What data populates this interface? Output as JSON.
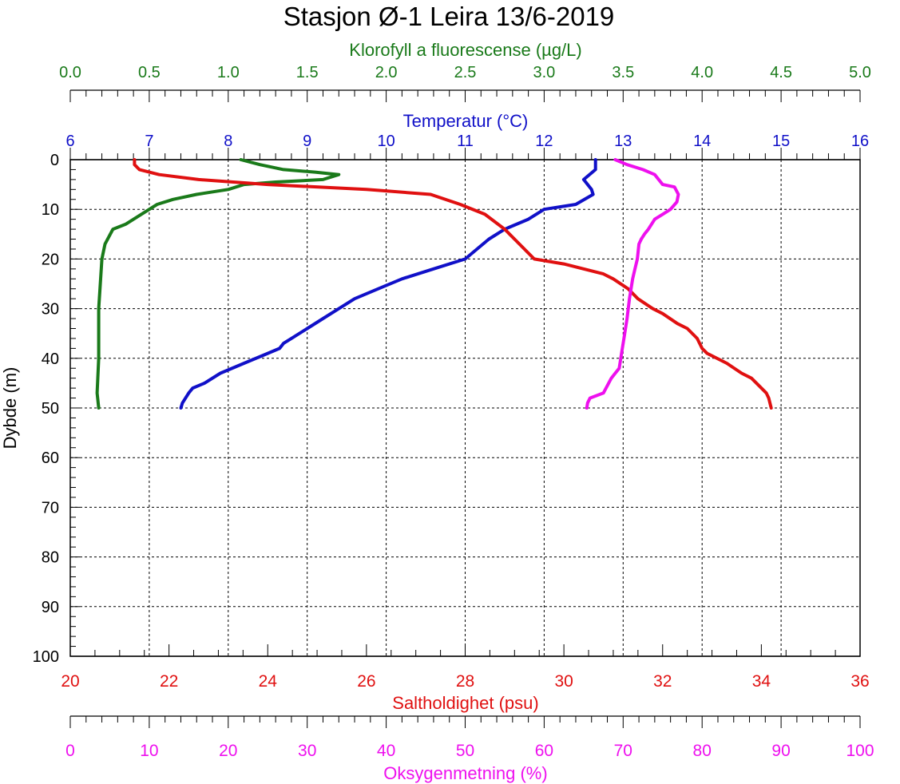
{
  "chart_data": {
    "type": "line",
    "title": "Stasjon Ø-1 Leira 13/6-2019",
    "ylabel": "Dybde (m)",
    "ylim": [
      0,
      100
    ],
    "y_ticks": [
      0,
      10,
      20,
      30,
      40,
      50,
      60,
      70,
      80,
      90,
      100
    ],
    "y_inverted": true,
    "grid": true,
    "axes": {
      "chlorophyll": {
        "label": "Klorofyll a fluorescense (µg/L)",
        "position": "top",
        "range": [
          0,
          5
        ],
        "ticks": [
          "0.0",
          "0.5",
          "1.0",
          "1.5",
          "2.0",
          "2.5",
          "3.0",
          "3.5",
          "4.0",
          "4.5",
          "5.0"
        ],
        "color": "#1a7a1a"
      },
      "temperature": {
        "label": "Temperatur (°C)",
        "position": "top",
        "range": [
          6,
          16
        ],
        "ticks": [
          "6",
          "7",
          "8",
          "9",
          "10",
          "11",
          "12",
          "13",
          "14",
          "15",
          "16"
        ],
        "color": "#1010c8"
      },
      "salinity": {
        "label": "Saltholdighet (psu)",
        "position": "bottom",
        "range": [
          20,
          36
        ],
        "ticks": [
          "20",
          "22",
          "24",
          "26",
          "28",
          "30",
          "32",
          "34",
          "36"
        ],
        "color": "#e01010"
      },
      "oxygen": {
        "label": "Oksygenmetning (%)",
        "position": "bottom",
        "range": [
          0,
          100
        ],
        "ticks": [
          "0",
          "10",
          "20",
          "30",
          "40",
          "50",
          "60",
          "70",
          "80",
          "90",
          "100"
        ],
        "color": "#ee10ee"
      }
    },
    "series": [
      {
        "axis": "chlorophyll",
        "color": "#1a7a1a",
        "points": [
          [
            1.08,
            0
          ],
          [
            1.2,
            1
          ],
          [
            1.35,
            2
          ],
          [
            1.55,
            2.5
          ],
          [
            1.7,
            3
          ],
          [
            1.6,
            4
          ],
          [
            1.3,
            4.5
          ],
          [
            1.1,
            5
          ],
          [
            1.0,
            6
          ],
          [
            0.8,
            7
          ],
          [
            0.65,
            8
          ],
          [
            0.55,
            9
          ],
          [
            0.45,
            11
          ],
          [
            0.35,
            13
          ],
          [
            0.27,
            14
          ],
          [
            0.22,
            17
          ],
          [
            0.2,
            20
          ],
          [
            0.19,
            25
          ],
          [
            0.18,
            30
          ],
          [
            0.18,
            40
          ],
          [
            0.17,
            47
          ],
          [
            0.18,
            50
          ]
        ]
      },
      {
        "axis": "temperature",
        "color": "#1010c8",
        "points": [
          [
            12.65,
            0
          ],
          [
            12.65,
            2
          ],
          [
            12.5,
            4
          ],
          [
            12.6,
            6
          ],
          [
            12.62,
            7
          ],
          [
            12.4,
            9
          ],
          [
            12.0,
            10
          ],
          [
            11.8,
            12
          ],
          [
            11.5,
            14
          ],
          [
            11.3,
            16
          ],
          [
            11.0,
            20
          ],
          [
            10.6,
            22
          ],
          [
            10.2,
            24
          ],
          [
            9.9,
            26
          ],
          [
            9.6,
            28
          ],
          [
            9.4,
            30
          ],
          [
            9.2,
            32
          ],
          [
            9.0,
            34
          ],
          [
            8.8,
            36
          ],
          [
            8.7,
            37
          ],
          [
            8.65,
            38
          ],
          [
            8.5,
            39
          ],
          [
            8.2,
            41
          ],
          [
            7.9,
            43
          ],
          [
            7.7,
            45
          ],
          [
            7.55,
            46
          ],
          [
            7.5,
            47
          ],
          [
            7.42,
            49
          ],
          [
            7.4,
            50
          ]
        ]
      },
      {
        "axis": "salinity",
        "color": "#e01010",
        "points": [
          [
            21.3,
            0
          ],
          [
            21.3,
            1
          ],
          [
            21.4,
            2
          ],
          [
            21.8,
            3
          ],
          [
            22.6,
            4
          ],
          [
            24.0,
            5
          ],
          [
            26.0,
            6
          ],
          [
            27.3,
            7
          ],
          [
            27.9,
            9
          ],
          [
            28.4,
            11
          ],
          [
            28.8,
            14
          ],
          [
            29.0,
            16
          ],
          [
            29.2,
            18
          ],
          [
            29.4,
            20
          ],
          [
            30.0,
            21
          ],
          [
            30.4,
            22
          ],
          [
            30.8,
            23
          ],
          [
            31.0,
            24
          ],
          [
            31.3,
            26
          ],
          [
            31.5,
            28
          ],
          [
            31.8,
            30
          ],
          [
            32.0,
            31
          ],
          [
            32.3,
            33
          ],
          [
            32.5,
            34
          ],
          [
            32.7,
            36
          ],
          [
            32.8,
            38
          ],
          [
            32.9,
            39
          ],
          [
            33.3,
            41
          ],
          [
            33.6,
            43
          ],
          [
            33.8,
            44
          ],
          [
            34.0,
            46
          ],
          [
            34.1,
            47
          ],
          [
            34.15,
            48
          ],
          [
            34.2,
            50
          ]
        ]
      },
      {
        "axis": "oxygen",
        "color": "#ee10ee",
        "points": [
          [
            69.0,
            0
          ],
          [
            70.5,
            1
          ],
          [
            72.5,
            2
          ],
          [
            74.0,
            3
          ],
          [
            74.5,
            4
          ],
          [
            75.0,
            5
          ],
          [
            76.5,
            5.5
          ],
          [
            77.0,
            7
          ],
          [
            76.8,
            8.5
          ],
          [
            76.0,
            10
          ],
          [
            75.0,
            11
          ],
          [
            74.0,
            12
          ],
          [
            73.2,
            14
          ],
          [
            72.7,
            15
          ],
          [
            72.3,
            16
          ],
          [
            72.0,
            17
          ],
          [
            71.8,
            20
          ],
          [
            71.5,
            22
          ],
          [
            71.2,
            24
          ],
          [
            70.8,
            28
          ],
          [
            70.5,
            32
          ],
          [
            70.2,
            35
          ],
          [
            69.9,
            38
          ],
          [
            69.5,
            42
          ],
          [
            69.0,
            43
          ],
          [
            68.5,
            44
          ],
          [
            67.5,
            47
          ],
          [
            65.8,
            48
          ],
          [
            65.5,
            49
          ],
          [
            65.4,
            50
          ]
        ]
      }
    ]
  }
}
